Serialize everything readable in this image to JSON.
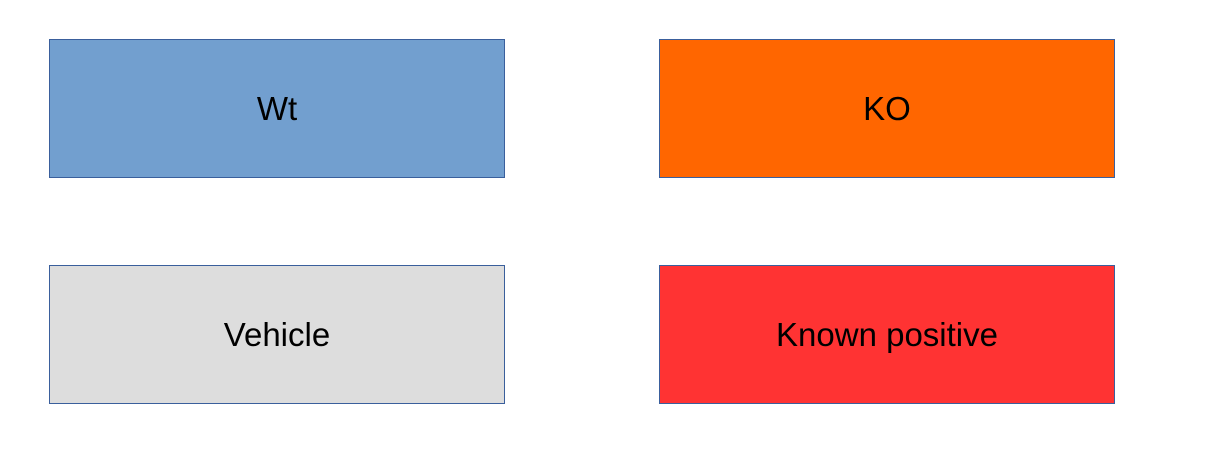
{
  "boxes": [
    {
      "id": "wt",
      "label": "Wt",
      "color": "#729fcf"
    },
    {
      "id": "ko",
      "label": "KO",
      "color": "#ff6600"
    },
    {
      "id": "vehicle",
      "label": "Vehicle",
      "color": "#dddddd"
    },
    {
      "id": "known",
      "label": "Known positive",
      "color": "#ff3333"
    }
  ]
}
